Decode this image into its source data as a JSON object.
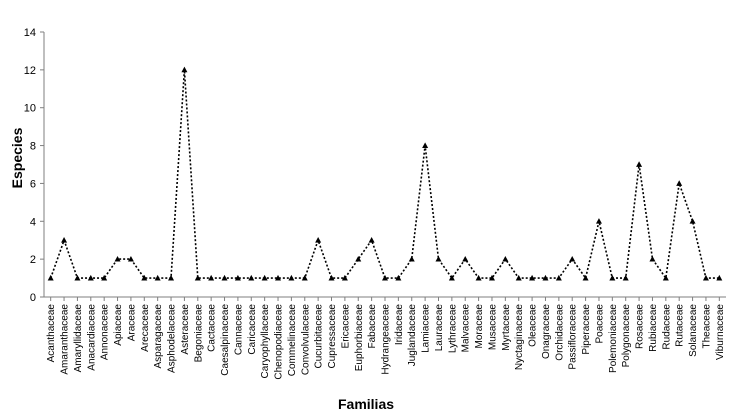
{
  "chart_data": {
    "type": "line",
    "title": "",
    "xlabel": "Familias",
    "ylabel": "Especies",
    "ylim": [
      0,
      14
    ],
    "yticks": [
      0,
      2,
      4,
      6,
      8,
      10,
      12,
      14
    ],
    "grid": false,
    "legend": "none",
    "line_style": "dotted",
    "marker": "triangle",
    "colors": {
      "line": "#000000",
      "marker": "#000000",
      "axis": "#7f7f7f"
    },
    "categories": [
      "Acanthaceae",
      "Amaranthaceae",
      "Amaryllidaceae",
      "Anacardiaceae",
      "Annonaceae",
      "Apiaceae",
      "Araceae",
      "Arecaceae",
      "Asparagaceae",
      "Asphodelaceae",
      "Asteraceae",
      "Begoniaceae",
      "Cactaceae",
      "Caesalpinaceae",
      "Cannaceae",
      "Caricaceae",
      "Caryophyllaceae",
      "Chenopodiaceae",
      "Commelinaceae",
      "Convolvulaceae",
      "Cucurbitaceae",
      "Cupressaceae",
      "Ericaceae",
      "Euphorbiaceae",
      "Fabaceae",
      "Hydrangeaceae",
      "Iridaceae",
      "Juglandaceae",
      "Lamiaceae",
      "Lauraceae",
      "Lythraceae",
      "Malvaceae",
      "Moraceae",
      "Musaceae",
      "Myrtaceae",
      "Nyctaginaceae",
      "Oleaceae",
      "Onagraceae",
      "Orchidaceae",
      "Passifloraceae",
      "Piperaceae",
      "Poaceae",
      "Polemoniaceae",
      "Polygonaceae",
      "Rosaceae",
      "Rubiaceae",
      "Rudaceae",
      "Rutaceae",
      "Solanaceae",
      "Theaceae",
      "Viburnaceae"
    ],
    "values": [
      1,
      3,
      1,
      1,
      1,
      2,
      2,
      1,
      1,
      1,
      12,
      1,
      1,
      1,
      1,
      1,
      1,
      1,
      1,
      1,
      3,
      1,
      1,
      2,
      3,
      1,
      1,
      2,
      8,
      2,
      1,
      2,
      1,
      1,
      2,
      1,
      1,
      1,
      1,
      2,
      1,
      4,
      1,
      1,
      7,
      2,
      1,
      6,
      4,
      1,
      1
    ]
  }
}
